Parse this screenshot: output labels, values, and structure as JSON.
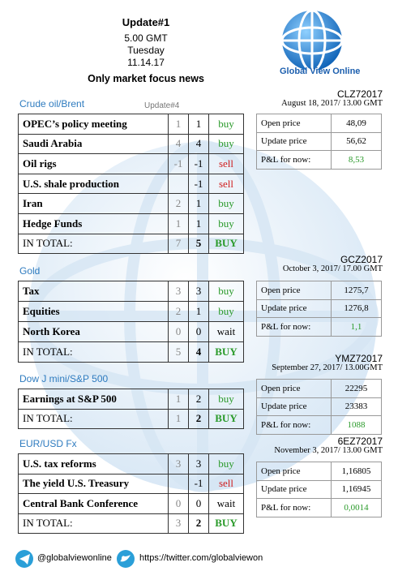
{
  "header": {
    "title": "Update#1",
    "time": "5.00 GMT",
    "day": "Tuesday",
    "date": "11.14.17",
    "subtitle": "Only market focus news",
    "logo": "Global View Online"
  },
  "sections": [
    {
      "name": "Crude oil/Brent",
      "note": "Update#4",
      "rows": [
        {
          "label": "OPEC’s policy meeting",
          "prev": 1,
          "now": 1,
          "signal": "buy",
          "color": "#2a9a2a"
        },
        {
          "label": "Saudi Arabia",
          "prev": 4,
          "now": 4,
          "signal": "buy",
          "color": "#2a9a2a"
        },
        {
          "label": "Oil rigs",
          "prev": -1,
          "now": -1,
          "signal": "sell",
          "color": "#d02020"
        },
        {
          "label": "U.S. shale production",
          "now": -1,
          "signal": "sell",
          "color": "#d02020"
        },
        {
          "label": "Iran",
          "prev": 2,
          "now": 1,
          "signal": "buy",
          "color": "#2a9a2a"
        },
        {
          "label": "Hedge Funds",
          "prev": 1,
          "now": 1,
          "signal": "buy",
          "color": "#2a9a2a"
        },
        {
          "label": "IN TOTAL:",
          "prev": 7,
          "now": 5,
          "signal": "BUY",
          "color": "#2a9a2a"
        }
      ],
      "contract": {
        "code": "CLZ72017",
        "date": "August 18, 2017/ 13.00 GMT",
        "rows": [
          [
            "Open price",
            "48,09"
          ],
          [
            "Update price",
            "56,62"
          ],
          [
            "P&L for now:",
            "8,53"
          ]
        ]
      }
    },
    {
      "name": "Gold",
      "rows": [
        {
          "label": "Tax",
          "prev": 3,
          "now": 3,
          "signal": "buy",
          "color": "#2a9a2a"
        },
        {
          "label": "Equities",
          "prev": 2,
          "now": 1,
          "signal": "buy",
          "color": "#2a9a2a"
        },
        {
          "label": "North Korea",
          "prev": 0,
          "now": 0,
          "signal": "wait",
          "color": "#000000"
        },
        {
          "label": "IN TOTAL:",
          "prev": 5,
          "now": 4,
          "signal": "BUY",
          "color": "#2a9a2a"
        }
      ],
      "contract": {
        "code": "GCZ2017",
        "date": "October 3, 2017/ 17.00 GMT",
        "rows": [
          [
            "Open price",
            "1275,7"
          ],
          [
            "Update price",
            "1276,8"
          ],
          [
            "P&L for now:",
            "1,1"
          ]
        ]
      }
    },
    {
      "name": "Dow J mini/S&P 500",
      "rows": [
        {
          "label": "Earnings at S&P 500",
          "prev": 1,
          "now": 2,
          "signal": "buy",
          "color": "#2a9a2a"
        },
        {
          "label": "IN TOTAL:",
          "prev": 1,
          "now": 2,
          "signal": "BUY",
          "color": "#2a9a2a"
        }
      ],
      "contract": {
        "code": "YMZ72017",
        "date": "September 27, 2017/ 13.00GMT",
        "rows": [
          [
            "Open price",
            "22295"
          ],
          [
            "Update price",
            "23383"
          ],
          [
            "P&L for now:",
            "1088"
          ]
        ]
      }
    },
    {
      "name": "EUR/USD Fx",
      "rows": [
        {
          "label": "U.S. tax reforms",
          "prev": 3,
          "now": 3,
          "signal": "buy",
          "color": "#2a9a2a"
        },
        {
          "label": "The yield U.S. Treasury",
          "now": -1,
          "signal": "sell",
          "color": "#d02020"
        },
        {
          "label": "Central Bank Conference",
          "prev": 0,
          "now": 0,
          "signal": "wait",
          "color": "#000000"
        },
        {
          "label": "IN TOTAL:",
          "prev": 3,
          "now": 2,
          "signal": "BUY",
          "color": "#2a9a2a"
        }
      ],
      "contract": {
        "code": "6EZ72017",
        "date": "November 3, 2017/ 13.00 GMT",
        "rows": [
          [
            "Open price",
            "1,16805"
          ],
          [
            "Update price",
            "1,16945"
          ],
          [
            "P&L for now:",
            "0,0014"
          ]
        ]
      }
    }
  ],
  "footer": {
    "telegram": "@globalviewonline",
    "twitter": "https://twitter.com/globalviewon"
  }
}
